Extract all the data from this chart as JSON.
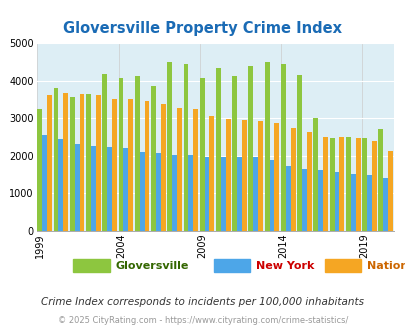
{
  "title": "Gloversville Property Crime Index",
  "subtitle": "Crime Index corresponds to incidents per 100,000 inhabitants",
  "footer": "© 2025 CityRating.com - https://www.cityrating.com/crime-statistics/",
  "years": [
    1999,
    2000,
    2001,
    2002,
    2003,
    2004,
    2005,
    2006,
    2007,
    2008,
    2009,
    2010,
    2011,
    2012,
    2013,
    2014,
    2015,
    2016,
    2017,
    2018,
    2019,
    2020
  ],
  "gloversville": [
    3250,
    3800,
    3550,
    3650,
    4180,
    4080,
    4120,
    3850,
    4490,
    4450,
    4070,
    4330,
    4110,
    4390,
    4490,
    4450,
    4150,
    3010,
    2480,
    2490,
    2470,
    2720
  ],
  "new_york": [
    2560,
    2440,
    2320,
    2270,
    2240,
    2210,
    2100,
    2080,
    2020,
    2010,
    1980,
    1970,
    1960,
    1980,
    1880,
    1730,
    1660,
    1610,
    1580,
    1520,
    1480,
    1420
  ],
  "national": [
    3620,
    3680,
    3630,
    3620,
    3520,
    3500,
    3450,
    3380,
    3280,
    3250,
    3060,
    2980,
    2950,
    2920,
    2880,
    2740,
    2620,
    2510,
    2490,
    2460,
    2390,
    2120
  ],
  "colors": {
    "gloversville": "#8dc63f",
    "new_york": "#4da6e8",
    "national": "#f5a623",
    "background": "#ddeef5",
    "title": "#1a6bb5",
    "subtitle": "#333333",
    "footer": "#999999",
    "grid": "#ffffff"
  },
  "ylim": [
    0,
    5000
  ],
  "yticks": [
    0,
    1000,
    2000,
    3000,
    4000,
    5000
  ],
  "xlabel_ticks_years": [
    1999,
    2004,
    2009,
    2014,
    2019
  ],
  "legend_labels": [
    "Gloversville",
    "New York",
    "National"
  ]
}
